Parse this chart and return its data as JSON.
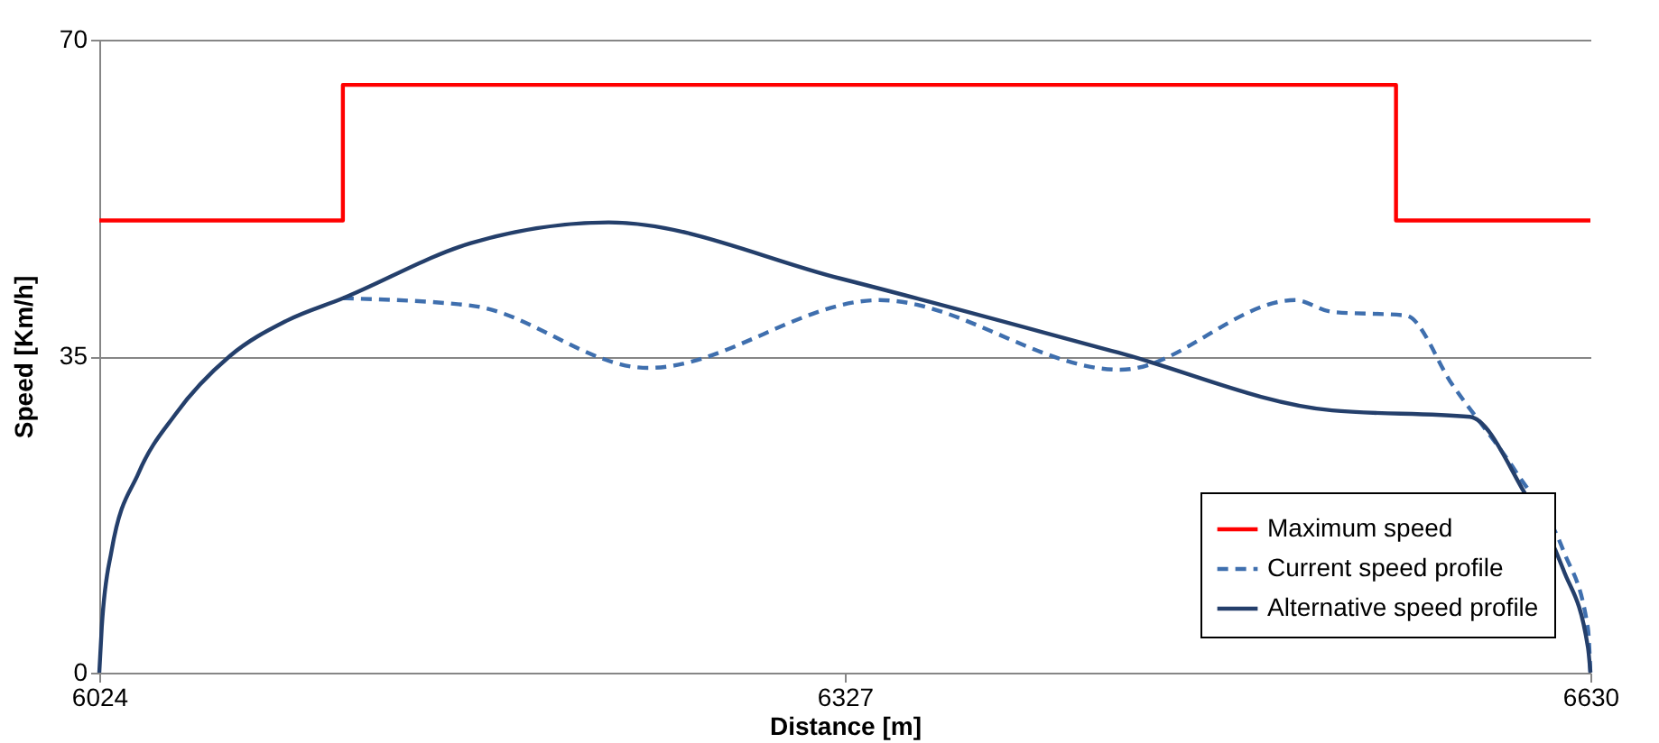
{
  "chart_data": {
    "type": "line",
    "xlabel": "Distance [m]",
    "ylabel": "Speed [Km/h]",
    "xlim": [
      6024,
      6630
    ],
    "xticks": [
      6024,
      6327,
      6630
    ],
    "ylim": [
      0,
      70
    ],
    "yticks": [
      0,
      35,
      70
    ],
    "grid": "y",
    "legend": "bottom right",
    "marker": "none",
    "series": [
      {
        "name": "Maximum speed",
        "type": "step",
        "color": "#ff0000",
        "line_style": "solid",
        "x": [
          6024,
          6123,
          6551,
          6630
        ],
        "values": [
          50,
          65,
          50,
          50
        ]
      },
      {
        "name": "Current speed profile",
        "color": "#3f6fae",
        "line_style": "dashed",
        "x": [
          6123,
          6175,
          6247,
          6341,
          6439,
          6510,
          6525,
          6555,
          6574,
          6600,
          6619,
          6629,
          6630
        ],
        "values": [
          41.4,
          40.6,
          33.7,
          41.2,
          33.5,
          41.2,
          39.9,
          39.5,
          31.8,
          22.1,
          13.5,
          4.9,
          0
        ]
      },
      {
        "name": "Alternative speed profile",
        "color": "#243f6b",
        "line_style": "solid",
        "x": [
          6024,
          6025,
          6029,
          6040,
          6055,
          6077,
          6100,
          6123,
          6175,
          6231,
          6325,
          6438,
          6525,
          6581,
          6603,
          6619,
          6629,
          6630
        ],
        "values": [
          0,
          5,
          13.5,
          22.1,
          28.6,
          35,
          38.9,
          41.4,
          47.5,
          49.8,
          43.6,
          35.4,
          29,
          28.3,
          20,
          11.4,
          2.8,
          0
        ]
      }
    ]
  }
}
